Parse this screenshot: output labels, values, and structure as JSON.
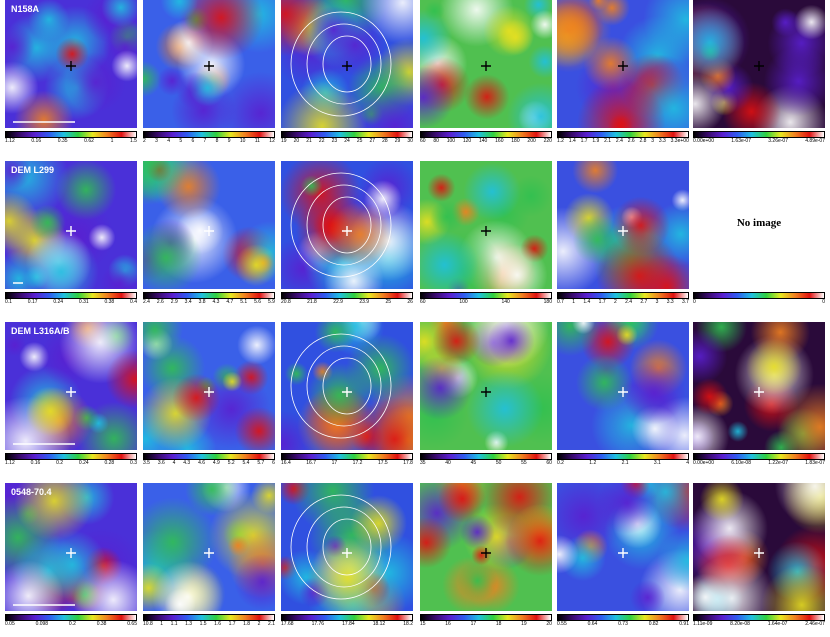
{
  "rows": [
    {
      "label": "N158A",
      "panels": [
        {
          "ticks": [
            "1.12",
            "0.16",
            "0.35",
            "0.62",
            "1",
            "1.5"
          ]
        },
        {
          "ticks": [
            "2",
            "3",
            "4",
            "5",
            "6",
            "7",
            "8",
            "9",
            "10",
            "11",
            "12"
          ]
        },
        {
          "ticks": [
            "19",
            "20",
            "21",
            "22",
            "23",
            "24",
            "25",
            "27",
            "28",
            "29",
            "30"
          ]
        },
        {
          "ticks": [
            "60",
            "80",
            "100",
            "120",
            "140",
            "160",
            "180",
            "200",
            "220"
          ]
        },
        {
          "ticks": [
            "1.2",
            "1.4",
            "1.7",
            "1.9",
            "2.1",
            "2.4",
            "2.6",
            "2.8",
            "3",
            "3.3",
            "3.3e+00"
          ]
        },
        {
          "ticks": [
            "0.00e+00",
            "1.63e-07",
            "3.26e-07",
            "4.89e-07"
          ]
        }
      ]
    },
    {
      "label": "DEM L299",
      "panels": [
        {
          "ticks": [
            "0.1",
            "0.17",
            "0.24",
            "0.31",
            "0.38",
            "0.4"
          ]
        },
        {
          "ticks": [
            "2.4",
            "2.6",
            "2.9",
            "3.4",
            "3.8",
            "4.3",
            "4.7",
            "5.1",
            "5.6",
            "5.9"
          ]
        },
        {
          "ticks": [
            "20.8",
            "21.8",
            "22.9",
            "23.9",
            "25",
            "26"
          ]
        },
        {
          "ticks": [
            "60",
            "100",
            "140",
            "180"
          ]
        },
        {
          "ticks": [
            "0.7",
            "1",
            "1.4",
            "1.7",
            "2",
            "2.4",
            "2.7",
            "3",
            "3.3",
            "3.7"
          ]
        },
        {
          "ticks": [
            "0",
            "0"
          ],
          "note": "No image"
        }
      ]
    },
    {
      "label": "DEM L316A/B",
      "panels": [
        {
          "ticks": [
            "1.12",
            "0.16",
            "0.2",
            "0.24",
            "0.28",
            "0.3"
          ]
        },
        {
          "ticks": [
            "3.5",
            "3.6",
            "4",
            "4.3",
            "4.6",
            "4.9",
            "5.2",
            "5.4",
            "5.7",
            "6"
          ]
        },
        {
          "ticks": [
            "16.4",
            "16.7",
            "17",
            "17.2",
            "17.5",
            "17.8"
          ]
        },
        {
          "ticks": [
            "35",
            "40",
            "45",
            "50",
            "55",
            "60"
          ]
        },
        {
          "ticks": [
            "0.2",
            "1.2",
            "2.1",
            "3.1",
            "4"
          ]
        },
        {
          "ticks": [
            "0.00e+00",
            "6.10e-08",
            "1.22e-07",
            "1.83e-07"
          ]
        }
      ]
    },
    {
      "label": "0548-70.4",
      "panels": [
        {
          "ticks": [
            "0.05",
            "0.098",
            "0.2",
            "0.38",
            "0.65"
          ]
        },
        {
          "ticks": [
            "10.8",
            "1",
            "1.1",
            "1.3",
            "1.5",
            "1.6",
            "1.7",
            "1.8",
            "2",
            "2.1"
          ]
        },
        {
          "ticks": [
            "17.68",
            "17.76",
            "17.84",
            "18.12",
            "18.2"
          ]
        },
        {
          "ticks": [
            "15",
            "16",
            "17",
            "18",
            "19",
            "20"
          ]
        },
        {
          "ticks": [
            "0.55",
            "0.64",
            "0.73",
            "0.82",
            "0.91"
          ]
        },
        {
          "ticks": [
            "1.11e-09",
            "8.20e-08",
            "1.64e-07",
            "2.46e-07"
          ]
        }
      ]
    }
  ]
}
